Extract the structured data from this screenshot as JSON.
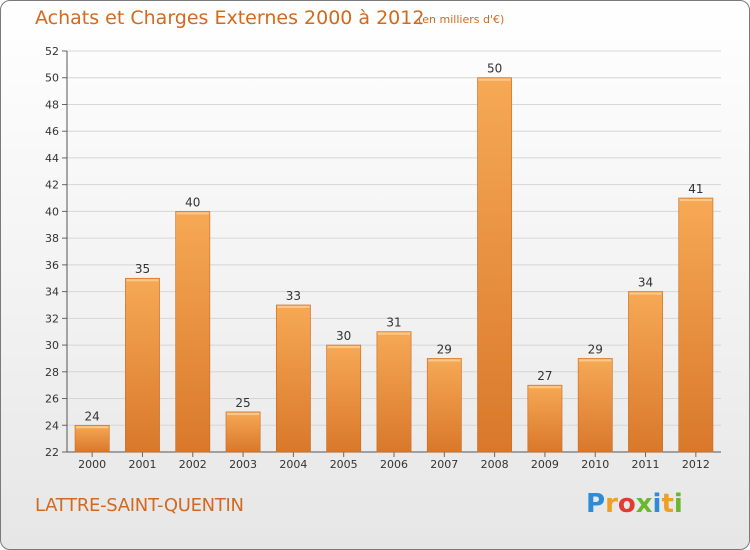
{
  "title": "Achats et Charges Externes 2000 à 2012",
  "unit_note": "(en milliers d'€)",
  "town": "LATTRE-SAINT-QUENTIN",
  "logo": {
    "letters": [
      {
        "ch": "P",
        "color": "#2e8bd6"
      },
      {
        "ch": "r",
        "color": "#f0a020"
      },
      {
        "ch": "o",
        "color": "#e03c31"
      },
      {
        "ch": "x",
        "color": "#6ab82d"
      },
      {
        "ch": "i",
        "color": "#2e8bd6"
      },
      {
        "ch": "t",
        "color": "#f0a020"
      },
      {
        "ch": "i",
        "color": "#6ab82d"
      }
    ]
  },
  "colors": {
    "bar_light": "#f6a955",
    "bar_dark": "#d9782a",
    "text_accent": "#d2691e"
  },
  "chart_data": {
    "type": "bar",
    "categories": [
      "2000",
      "2001",
      "2002",
      "2003",
      "2004",
      "2005",
      "2006",
      "2007",
      "2008",
      "2009",
      "2010",
      "2011",
      "2012"
    ],
    "values": [
      24,
      35,
      40,
      25,
      33,
      30,
      31,
      29,
      50,
      27,
      29,
      34,
      41
    ],
    "yticks": [
      22,
      24,
      26,
      28,
      30,
      32,
      34,
      36,
      38,
      40,
      42,
      44,
      46,
      48,
      50,
      52
    ],
    "ylim": [
      22,
      52
    ],
    "grid": true,
    "legend": "none"
  }
}
